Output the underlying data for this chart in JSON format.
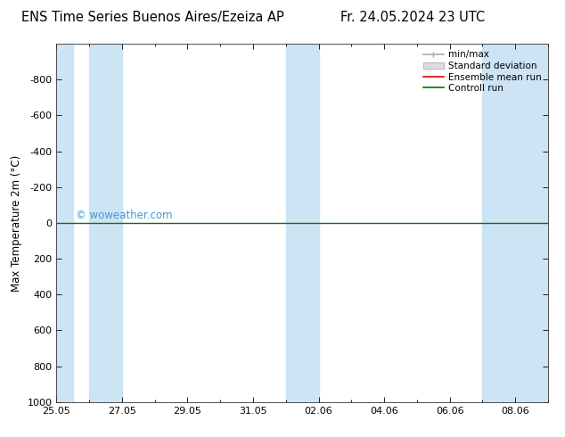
{
  "title_left": "ENS Time Series Buenos Aires/Ezeiza AP",
  "title_right": "Fr. 24.05.2024 23 UTC",
  "ylabel": "Max Temperature 2m (°C)",
  "ylim": [
    -1000,
    1000
  ],
  "yticks": [
    -800,
    -600,
    -400,
    -200,
    0,
    200,
    400,
    600,
    800,
    1000
  ],
  "xlim_start": 0,
  "xlim_end": 15,
  "xtick_labels": [
    "25.05",
    "27.05",
    "29.05",
    "31.05",
    "02.06",
    "04.06",
    "06.06",
    "08.06"
  ],
  "xtick_positions": [
    0,
    2,
    4,
    6,
    8,
    10,
    12,
    14
  ],
  "blue_bands": [
    [
      0.0,
      0.5
    ],
    [
      1.0,
      2.0
    ],
    [
      7.0,
      8.0
    ],
    [
      13.0,
      15.0
    ]
  ],
  "control_run_y": 0,
  "watermark": "© woweather.com",
  "watermark_color": "#4499cc",
  "bg_color": "#ffffff",
  "plot_bg_color": "#ffffff",
  "band_color": "#cce4f4",
  "legend_items": [
    "min/max",
    "Standard deviation",
    "Ensemble mean run",
    "Controll run"
  ],
  "legend_colors": [
    "#aaaaaa",
    "#cccccc",
    "#dd0000",
    "#007700"
  ],
  "control_line_color": "#007700",
  "title_fontsize": 10.5,
  "axis_label_fontsize": 8.5,
  "tick_fontsize": 8
}
